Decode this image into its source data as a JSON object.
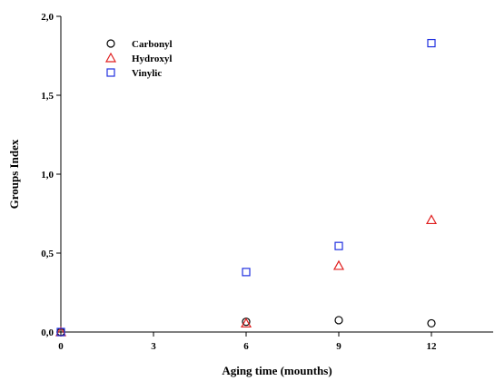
{
  "chart_data": {
    "type": "scatter",
    "xlabel": "Aging time (mounths)",
    "ylabel": "Groups Index",
    "xlim": [
      0,
      14
    ],
    "ylim": [
      0,
      2.0
    ],
    "x_ticks": [
      {
        "value": 0,
        "label": "0"
      },
      {
        "value": 3,
        "label": "3"
      },
      {
        "value": 6,
        "label": "6"
      },
      {
        "value": 9,
        "label": "9"
      },
      {
        "value": 12,
        "label": "12"
      }
    ],
    "y_ticks": [
      {
        "value": 0.0,
        "label": "0,0"
      },
      {
        "value": 0.5,
        "label": "0,5"
      },
      {
        "value": 1.0,
        "label": "1,0"
      },
      {
        "value": 1.5,
        "label": "1,5"
      },
      {
        "value": 2.0,
        "label": "2,0"
      }
    ],
    "grid": false,
    "legend_position": "top-left",
    "series": [
      {
        "name": "Carbonyl",
        "marker": "circle",
        "color": "#000000",
        "points": [
          {
            "x": 0,
            "y": 0.0
          },
          {
            "x": 6,
            "y": 0.065
          },
          {
            "x": 9,
            "y": 0.075
          },
          {
            "x": 12,
            "y": 0.055
          }
        ]
      },
      {
        "name": "Hydroxyl",
        "marker": "triangle",
        "color": "#e02020",
        "points": [
          {
            "x": 0,
            "y": 0.0
          },
          {
            "x": 6,
            "y": 0.055
          },
          {
            "x": 9,
            "y": 0.42
          },
          {
            "x": 12,
            "y": 0.71
          }
        ]
      },
      {
        "name": "Vinylic",
        "marker": "square",
        "color": "#2030e0",
        "points": [
          {
            "x": 0,
            "y": 0.0
          },
          {
            "x": 6,
            "y": 0.38
          },
          {
            "x": 9,
            "y": 0.545
          },
          {
            "x": 12,
            "y": 1.83
          }
        ]
      }
    ]
  }
}
